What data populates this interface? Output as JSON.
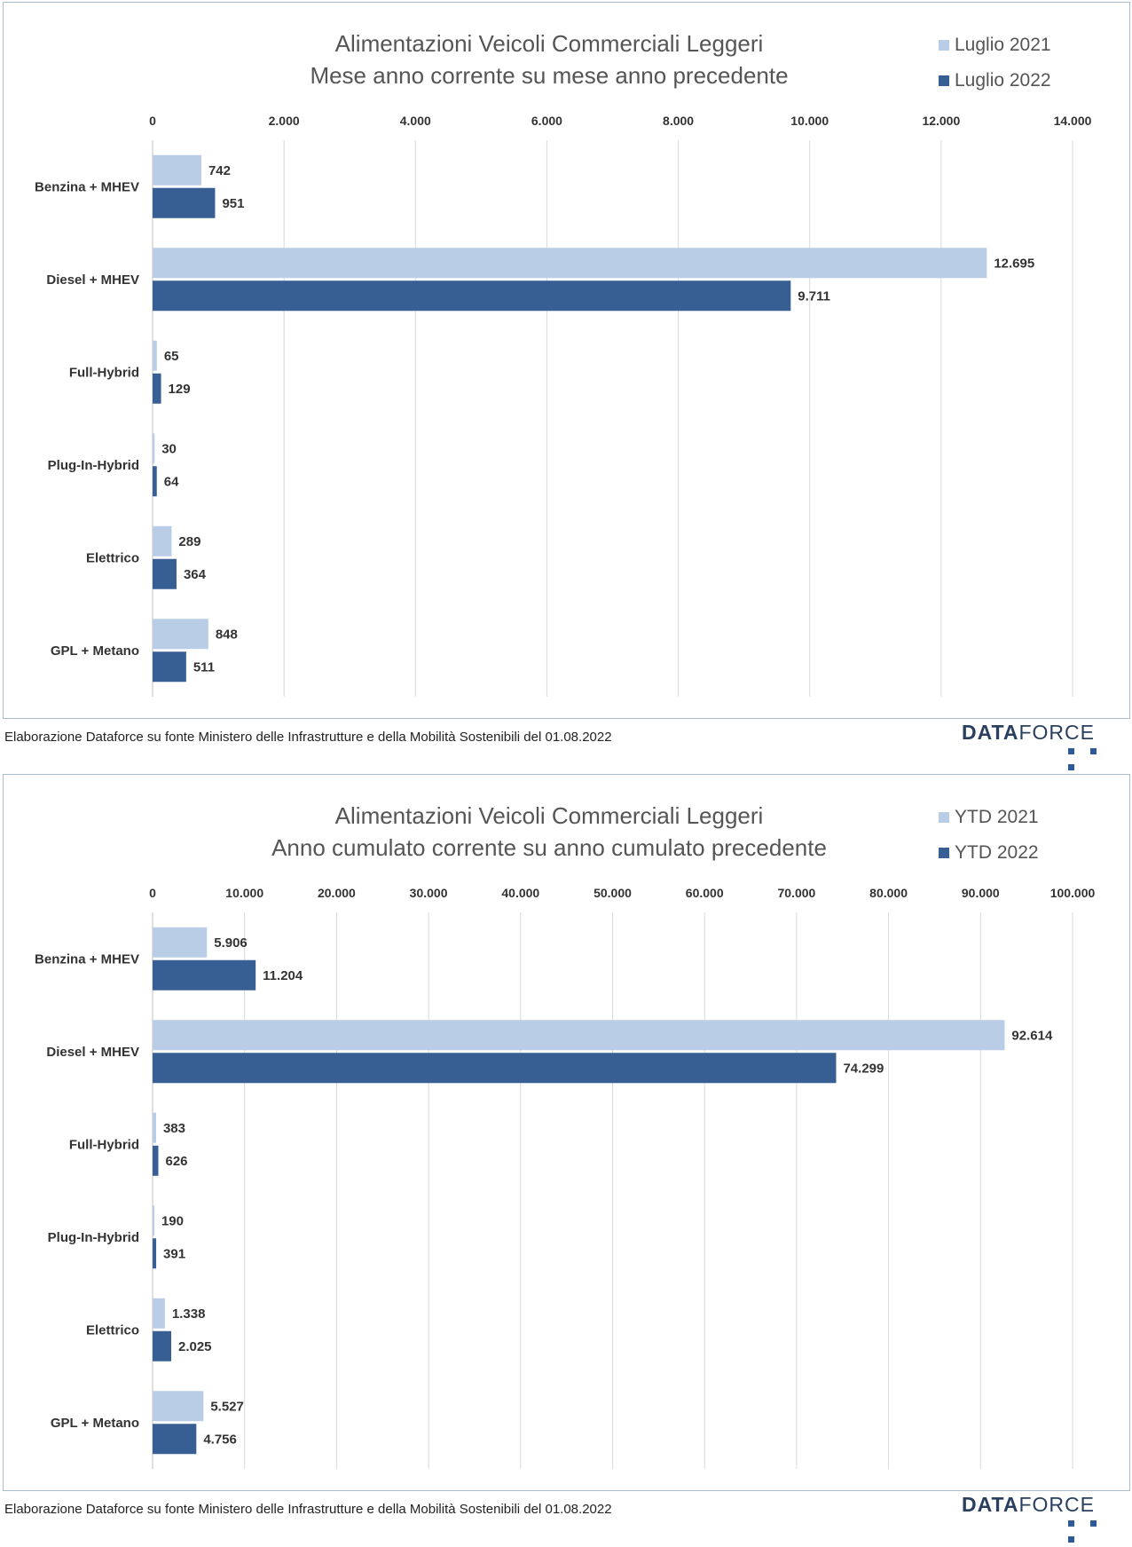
{
  "colors": {
    "prev": "#b9cde6",
    "curr": "#375f93",
    "grid": "#d9d9d9",
    "text": "#333333"
  },
  "chart_data": [
    {
      "type": "bar",
      "orientation": "horizontal",
      "title": "Alimentazioni Veicoli Commerciali Leggeri",
      "subtitle": "Mese anno corrente su mese anno precedente",
      "categories": [
        "Benzina + MHEV",
        "Diesel + MHEV",
        "Full-Hybrid",
        "Plug-In-Hybrid",
        "Elettrico",
        "GPL + Metano"
      ],
      "series": [
        {
          "name": "Luglio 2021",
          "values": [
            742,
            12695,
            65,
            30,
            289,
            848
          ],
          "labels": [
            "742",
            "12.695",
            "65",
            "30",
            "289",
            "848"
          ]
        },
        {
          "name": "Luglio 2022",
          "values": [
            951,
            9711,
            129,
            64,
            364,
            511
          ],
          "labels": [
            "951",
            "9.711",
            "129",
            "64",
            "364",
            "511"
          ]
        }
      ],
      "xlim": [
        0,
        14000
      ],
      "ticks": [
        0,
        2000,
        4000,
        6000,
        8000,
        10000,
        12000,
        14000
      ],
      "tick_labels": [
        "0",
        "2.000",
        "4.000",
        "6.000",
        "8.000",
        "10.000",
        "12.000",
        "14.000"
      ],
      "axis_position": "top",
      "grid": true,
      "legend": "top-right",
      "source": "Elaborazione Dataforce su fonte Ministero delle Infrastrutture e della Mobilità Sostenibili del 01.08.2022"
    },
    {
      "type": "bar",
      "orientation": "horizontal",
      "title": "Alimentazioni Veicoli Commerciali Leggeri",
      "subtitle": "Anno cumulato corrente su anno cumulato precedente",
      "categories": [
        "Benzina + MHEV",
        "Diesel + MHEV",
        "Full-Hybrid",
        "Plug-In-Hybrid",
        "Elettrico",
        "GPL + Metano"
      ],
      "series": [
        {
          "name": "YTD 2021",
          "values": [
            5906,
            92614,
            383,
            190,
            1338,
            5527
          ],
          "labels": [
            "5.906",
            "92.614",
            "383",
            "190",
            "1.338",
            "5.527"
          ]
        },
        {
          "name": "YTD 2022",
          "values": [
            11204,
            74299,
            626,
            391,
            2025,
            4756
          ],
          "labels": [
            "11.204",
            "74.299",
            "626",
            "391",
            "2.025",
            "4.756"
          ]
        }
      ],
      "xlim": [
        0,
        100000
      ],
      "ticks": [
        0,
        10000,
        20000,
        30000,
        40000,
        50000,
        60000,
        70000,
        80000,
        90000,
        100000
      ],
      "tick_labels": [
        "0",
        "10.000",
        "20.000",
        "30.000",
        "40.000",
        "50.000",
        "60.000",
        "70.000",
        "80.000",
        "90.000",
        "100.000"
      ],
      "axis_position": "top",
      "grid": true,
      "legend": "top-right",
      "source": "Elaborazione Dataforce su fonte Ministero delle Infrastrutture e della Mobilità Sostenibili del 01.08.2022"
    }
  ],
  "brand": {
    "part1": "DATA",
    "part2": "FORCE"
  }
}
